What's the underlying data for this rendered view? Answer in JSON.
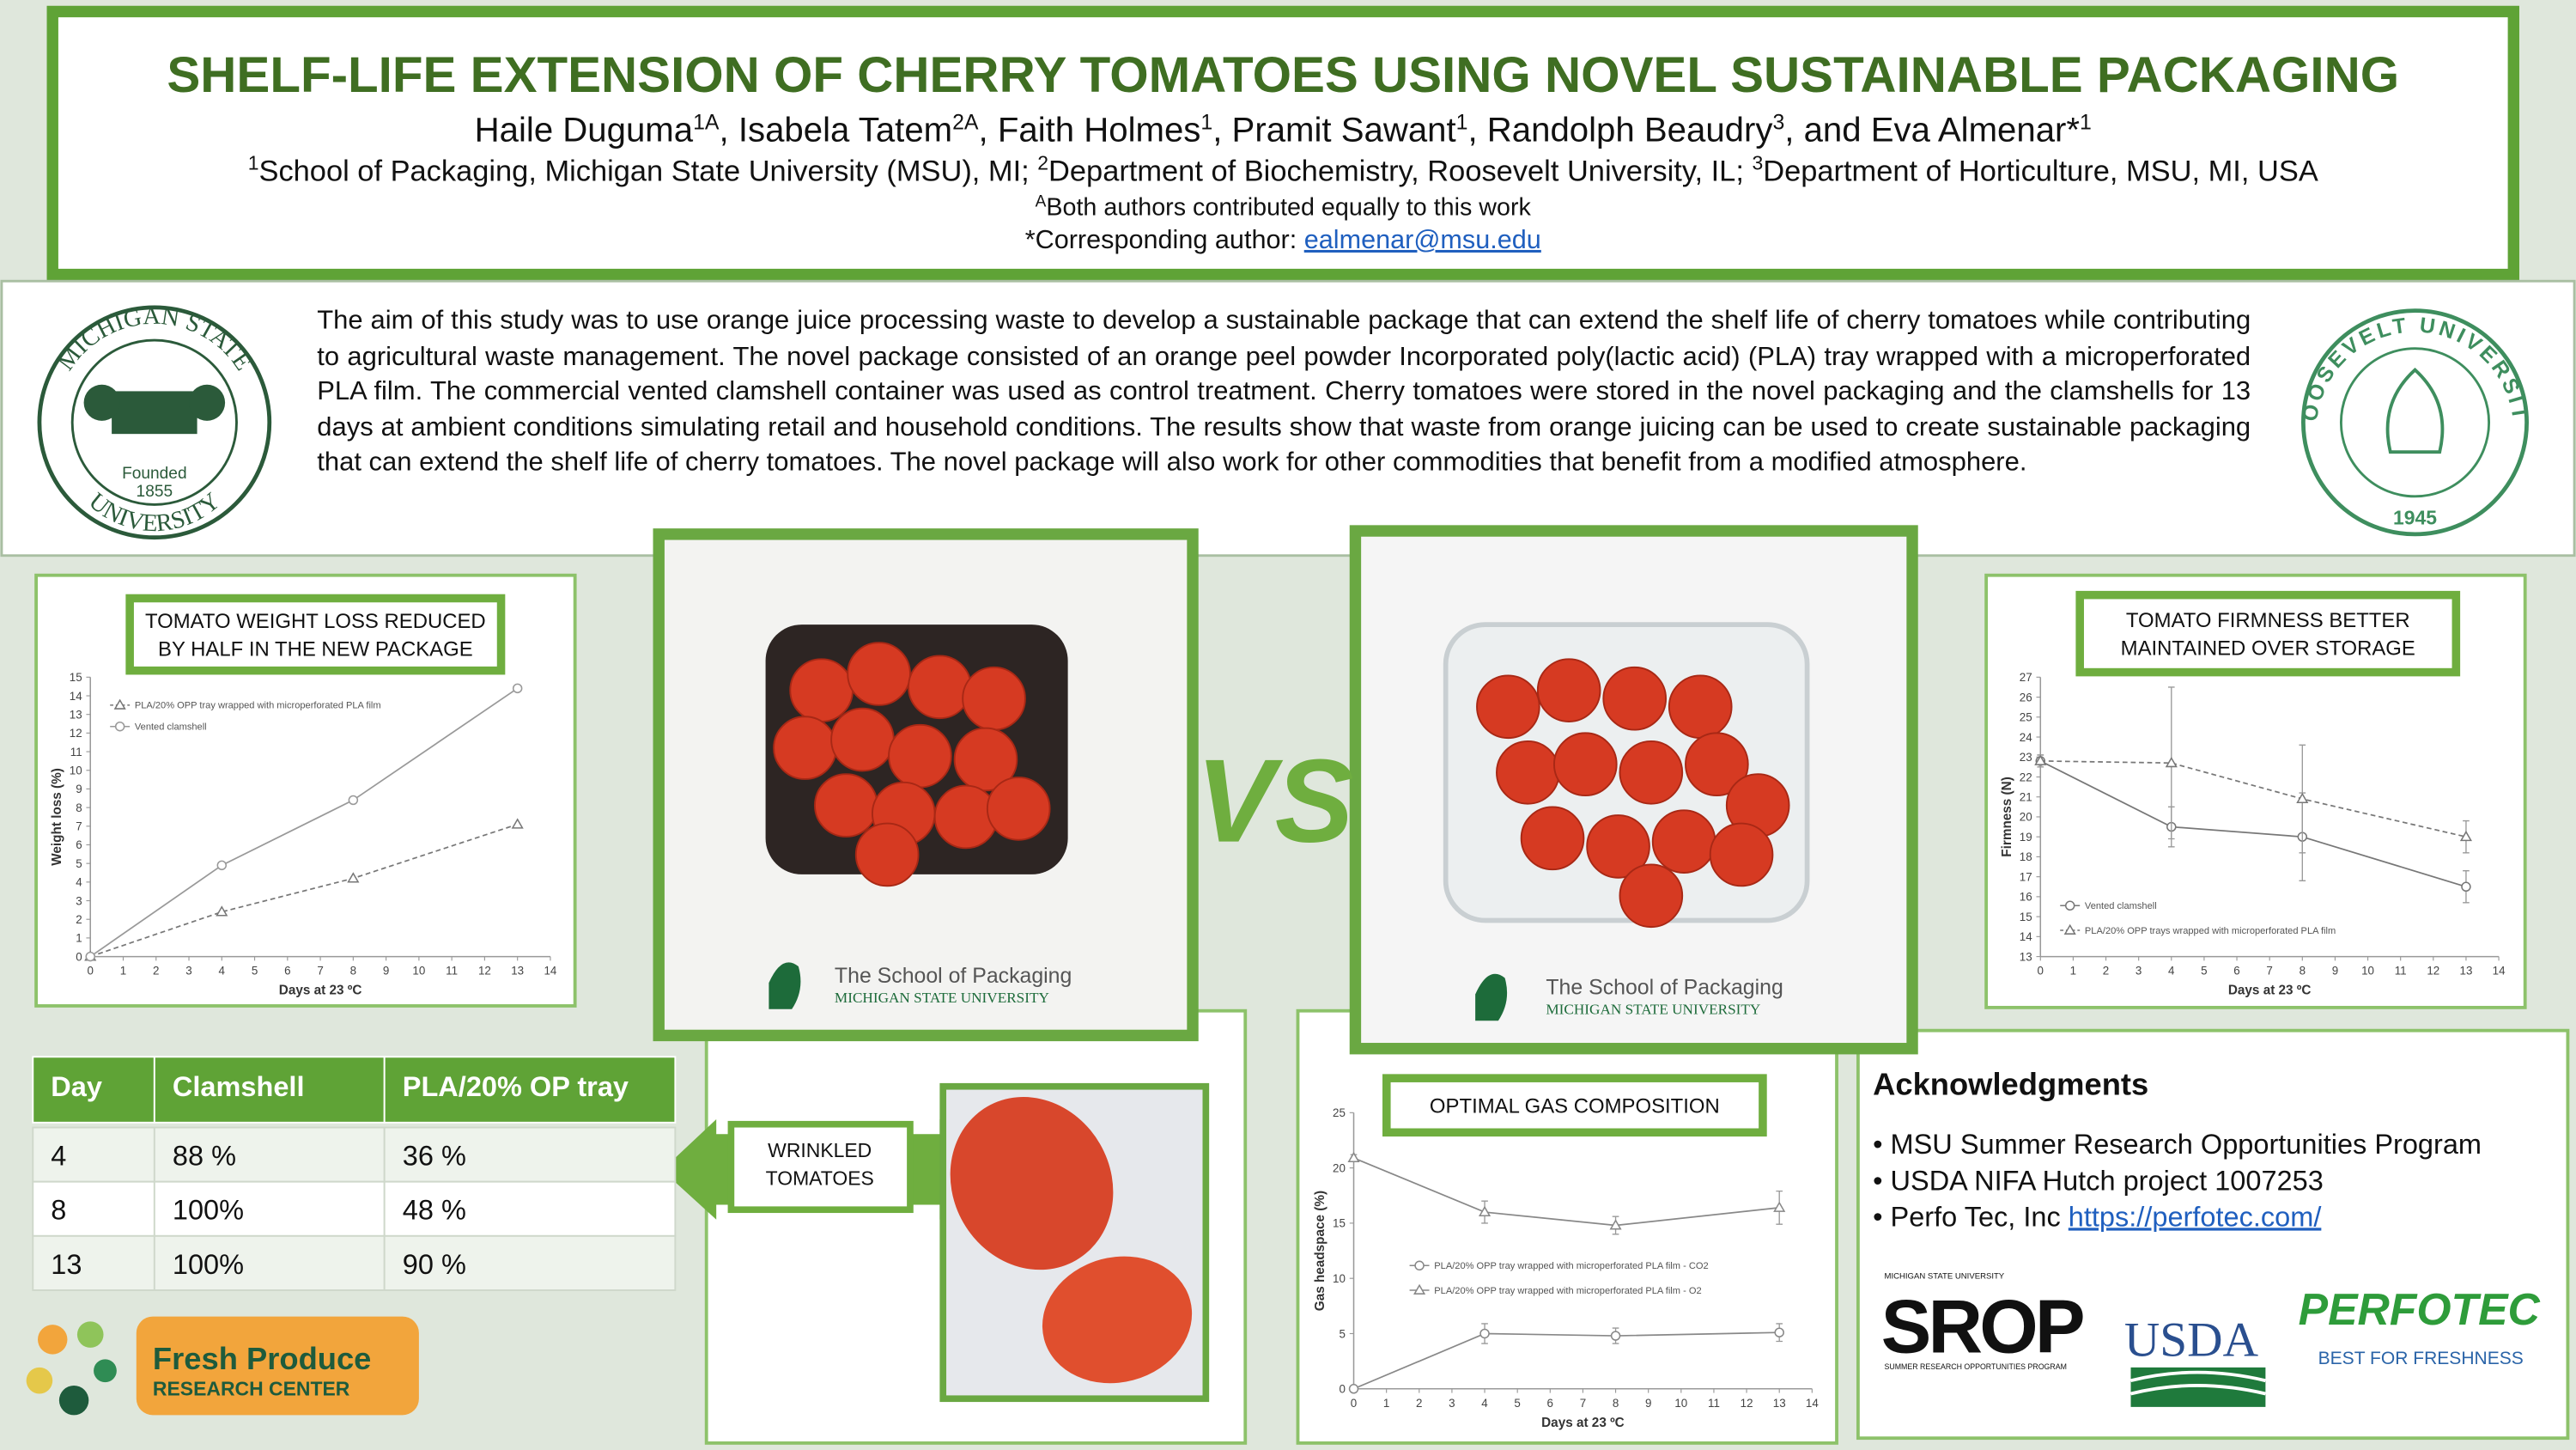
{
  "header": {
    "title": "SHELF-LIFE EXTENSION OF CHERRY TOMATOES USING NOVEL SUSTAINABLE PACKAGING",
    "authors": [
      {
        "text": "Haile Duguma",
        "sup": "1A"
      },
      {
        "text": ", Isabela Tatem",
        "sup": "2A"
      },
      {
        "text": ", Faith Holmes",
        "sup": "1"
      },
      {
        "text": ", Pramit Sawant",
        "sup": "1"
      },
      {
        "text": ", Randolph Beaudry",
        "sup": "3"
      },
      {
        "text": ", and Eva Almenar*",
        "sup": "1"
      }
    ],
    "affiliations": [
      {
        "sup": "1",
        "text": "School of Packaging, Michigan State University (MSU), MI; "
      },
      {
        "sup": "2",
        "text": "Department of Biochemistry, Roosevelt University, IL;  "
      },
      {
        "sup": "3",
        "text": "Department of Horticulture, MSU, MI, USA"
      }
    ],
    "note": {
      "sup": "A",
      "text": "Both authors contributed equally to this work"
    },
    "corresponding": {
      "text": "*Corresponding author: ",
      "email": "ealmenar@msu.edu"
    }
  },
  "abstract": "The aim of this study was to use orange juice processing waste to develop a sustainable package that can extend the shelf life of cherry tomatoes while contributing to agricultural waste management. The novel package consisted of an orange peel powder Incorporated poly(lactic acid) (PLA) tray wrapped with a microperforated PLA film. The commercial vented clamshell container was used as control treatment. Cherry tomatoes were stored in the novel packaging and the clamshells for 13 days at ambient conditions simulating retail and household conditions. The results show that waste from orange juicing can be used to create sustainable packaging that can extend the shelf life of cherry tomatoes. The novel package will also work for other commodities that benefit from a modified atmosphere.",
  "logos": {
    "msu": {
      "top": "MICHIGAN STATE",
      "bottom": "UNIVERSITY",
      "founded": "Founded",
      "year": "1855"
    },
    "roosevelt": {
      "name": "ROOSEVELT UNIVERSITY",
      "year": "1945"
    },
    "packaging": {
      "name": "The School of Packaging",
      "university": "MICHIGAN STATE UNIVERSITY"
    },
    "fresh_produce": {
      "name": "Fresh Produce",
      "sub": "RESEARCH CENTER"
    },
    "srop": {
      "top": "MICHIGAN STATE UNIVERSITY",
      "name": "SROP",
      "sub": "SUMMER RESEARCH OPPORTUNITIES PROGRAM"
    },
    "usda": "USDA",
    "perfotec": {
      "name": "PERFOTEC",
      "tagline": "BEST FOR FRESHNESS"
    }
  },
  "vs": "VS",
  "wrinkled_label": [
    "WRINKLED",
    "TOMATOES"
  ],
  "table": {
    "header": [
      "Day",
      "Clamshell",
      "PLA/20% OP tray"
    ],
    "rows": [
      [
        "4",
        "88 %",
        "36 %"
      ],
      [
        "8",
        "100%",
        "48 %"
      ],
      [
        "13",
        "100%",
        "90 %"
      ]
    ]
  },
  "acknowledgments": {
    "title": "Acknowledgments",
    "items": [
      "MSU Summer Research Opportunities Program",
      "USDA  NIFA Hutch project 1007253"
    ],
    "link_item": {
      "text": "Perfo Tec, Inc ",
      "link": "https://perfotec.com/"
    }
  },
  "chart_data": [
    {
      "type": "line",
      "title_lines": [
        "TOMATO WEIGHT LOSS REDUCED",
        "BY HALF IN THE NEW PACKAGE"
      ],
      "x": [
        0,
        4,
        8,
        13
      ],
      "series": [
        {
          "name": "PLA/20% OPP tray wrapped with microperforated PLA film",
          "color": "#777777",
          "dash": true,
          "marker": "triangle",
          "values": [
            0,
            2.4,
            4.2,
            7.1
          ]
        },
        {
          "name": "Vented clamshell",
          "color": "#999999",
          "dash": false,
          "marker": "circle",
          "values": [
            0,
            4.9,
            8.4,
            14.4
          ]
        }
      ],
      "xlim": [
        0,
        14
      ],
      "xticks": [
        0,
        1,
        2,
        3,
        4,
        5,
        6,
        7,
        8,
        9,
        10,
        11,
        12,
        13,
        14
      ],
      "ylim": [
        0,
        15
      ],
      "yticks": [
        0,
        1,
        2,
        3,
        4,
        5,
        6,
        7,
        8,
        9,
        10,
        11,
        12,
        13,
        14,
        15
      ],
      "xlabel": "Days at 23 ºC",
      "ylabel": "Weight loss (%)",
      "legend": "upper left"
    },
    {
      "type": "line",
      "title_lines": [
        "TOMATO FIRMNESS BETTER",
        "MAINTAINED OVER STORAGE"
      ],
      "x": [
        0,
        4,
        8,
        13
      ],
      "series": [
        {
          "name": "Vented clamshell",
          "color": "#777777",
          "dash": false,
          "marker": "circle",
          "values": [
            22.8,
            19.5,
            19,
            16.5
          ],
          "errors": [
            0.3,
            1,
            2.2,
            0.8
          ]
        },
        {
          "name": "PLA/20% OPP trays wrapped with microperforated PLA film",
          "color": "#777777",
          "dash": true,
          "marker": "triangle",
          "values": [
            22.8,
            22.7,
            20.9,
            19
          ],
          "errors": [
            0.3,
            3.8,
            2.7,
            0.8
          ]
        }
      ],
      "xlim": [
        0,
        14
      ],
      "xticks": [
        0,
        1,
        2,
        3,
        4,
        5,
        6,
        7,
        8,
        9,
        10,
        11,
        12,
        13,
        14
      ],
      "ylim": [
        13,
        27
      ],
      "yticks": [
        13,
        14,
        15,
        16,
        17,
        18,
        19,
        20,
        21,
        22,
        23,
        24,
        25,
        26,
        27
      ],
      "xlabel": "Days at 23 ºC",
      "ylabel": "Firmness (N)",
      "legend": "lower left"
    },
    {
      "type": "line",
      "title_lines": [
        "OPTIMAL GAS COMPOSITION"
      ],
      "x": [
        0,
        4,
        8,
        13
      ],
      "series": [
        {
          "name": "PLA/20% OPP tray wrapped with microperforated PLA film - CO2",
          "color": "#888888",
          "dash": false,
          "marker": "circle",
          "values": [
            0,
            5,
            4.8,
            5.1
          ],
          "errors": [
            0.2,
            0.9,
            0.7,
            0.8
          ]
        },
        {
          "name": "PLA/20% OPP tray wrapped with microperforated PLA film - O2",
          "color": "#888888",
          "dash": false,
          "marker": "triangle",
          "values": [
            20.9,
            16,
            14.8,
            16.4
          ],
          "errors": [
            0.3,
            1,
            0.8,
            1.5
          ]
        }
      ],
      "xlim": [
        0,
        14
      ],
      "xticks": [
        0,
        1,
        2,
        3,
        4,
        5,
        6,
        7,
        8,
        9,
        10,
        11,
        12,
        13,
        14
      ],
      "ylim": [
        0,
        25
      ],
      "yticks": [
        0,
        5,
        10,
        15,
        20,
        25
      ],
      "xlabel": "Days at 23 ºC",
      "ylabel": "Gas headspace (%)",
      "legend": "center left"
    }
  ]
}
